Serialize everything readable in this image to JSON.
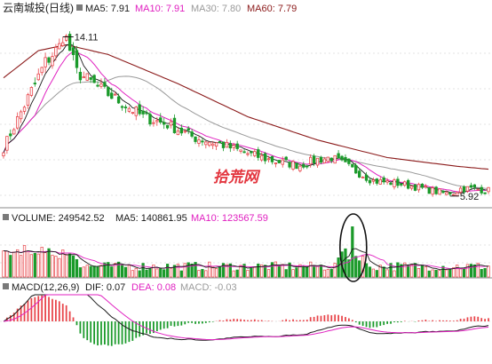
{
  "colors": {
    "up": "#e8454a",
    "down": "#1a9a2a",
    "ma5": "#1a1a1a",
    "ma10": "#e020c0",
    "ma30": "#9a9a9a",
    "ma60": "#8b1a1a",
    "dif": "#1a1a1a",
    "dea": "#e020c0",
    "grid": "#c8c8c8",
    "text": "#1a1a1a",
    "watermark": "#e0202a"
  },
  "price_panel": {
    "name": "云南城投(日线)",
    "ma5": {
      "label": "MA5: 7.91"
    },
    "ma10": {
      "label": "MA10: 7.91"
    },
    "ma30": {
      "label": "MA30: 7.80"
    },
    "ma60": {
      "label": "MA60: 7.79"
    },
    "high_marker": "14.11",
    "low_marker": "5.92"
  },
  "volume_panel": {
    "volume": {
      "label": "VOLUME: 249542.52"
    },
    "ma5": {
      "label": "MA5: 140861.95"
    },
    "ma10": {
      "label": "MA10: 123567.59"
    }
  },
  "macd_panel": {
    "title": "MACD(12,26,9)",
    "dif": {
      "label": "DIF: 0.07"
    },
    "dea": {
      "label": "DEA: 0.08"
    },
    "macd": {
      "label": "MACD: -0.03"
    }
  },
  "watermark": "拾荒网",
  "chart_data": {
    "type": "candlestick",
    "series_count": 140,
    "price_range": [
      5.5,
      15.0
    ],
    "price_anchors": [
      [
        0,
        8.4
      ],
      [
        6,
        10.6
      ],
      [
        12,
        12.8
      ],
      [
        16,
        13.6
      ],
      [
        18,
        14.0
      ],
      [
        21,
        12.3
      ],
      [
        28,
        11.4
      ],
      [
        34,
        10.7
      ],
      [
        40,
        10.0
      ],
      [
        47,
        9.6
      ],
      [
        55,
        8.9
      ],
      [
        62,
        8.6
      ],
      [
        70,
        8.1
      ],
      [
        78,
        7.7
      ],
      [
        85,
        7.5
      ],
      [
        90,
        7.8
      ],
      [
        94,
        7.9
      ],
      [
        100,
        7.3
      ],
      [
        106,
        6.7
      ],
      [
        112,
        6.6
      ],
      [
        118,
        6.4
      ],
      [
        124,
        6.15
      ],
      [
        128,
        6.0
      ],
      [
        131,
        6.3
      ],
      [
        135,
        6.3
      ],
      [
        139,
        6.2
      ]
    ],
    "high_point": {
      "index": 17,
      "value": 14.11
    },
    "low_point": {
      "index": 128,
      "value": 5.92
    },
    "ma60_anchors": [
      [
        0,
        12.0
      ],
      [
        10,
        13.4
      ],
      [
        18,
        13.7
      ],
      [
        30,
        13.2
      ],
      [
        50,
        11.7
      ],
      [
        70,
        10.0
      ],
      [
        90,
        8.8
      ],
      [
        110,
        7.9
      ],
      [
        130,
        7.45
      ],
      [
        139,
        7.3
      ]
    ],
    "volume_spike": {
      "index": 100,
      "value": 249542.52
    },
    "volume_range": [
      0,
      260000
    ]
  }
}
